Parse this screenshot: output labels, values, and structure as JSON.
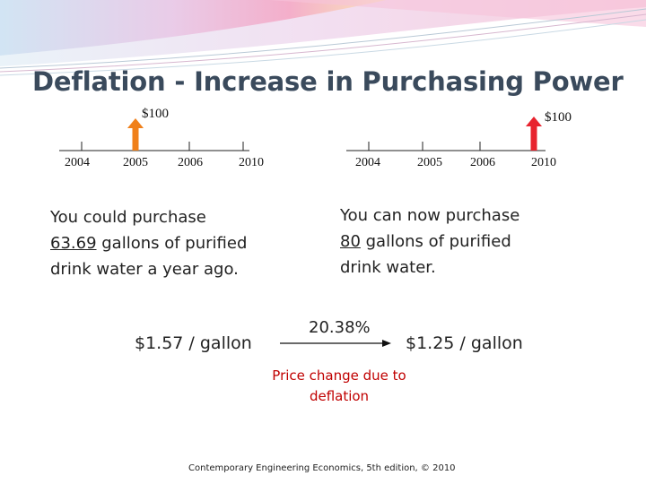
{
  "title": "Deflation - Increase in Purchasing Power",
  "colors": {
    "title": "#3a4a5c",
    "arrow_left": "#f0801a",
    "arrow_right": "#e8232e",
    "red_text": "#c00000"
  },
  "left_timeline": {
    "amount_label": "$100",
    "years": [
      "2004",
      "2005",
      "2006",
      "2010"
    ],
    "arrow_at_year": "2005"
  },
  "right_timeline": {
    "amount_label": "$100",
    "years": [
      "2004",
      "2005",
      "2006",
      "2010"
    ],
    "arrow_at_year": "2010"
  },
  "left_text": {
    "line1": "You could purchase",
    "amount": "63.69",
    "line2_rest": " gallons of purified",
    "line3": "drink water a year ago."
  },
  "right_text": {
    "line1": "You can now purchase",
    "amount": "80",
    "line2_rest": " gallons of purified",
    "line3": "drink water."
  },
  "left_price": "$1.57 / gallon",
  "right_price": "$1.25 / gallon",
  "percent_change": "20.38%",
  "price_change_note": {
    "line1": "Price change due to",
    "line2": "deflation"
  },
  "footer": "Contemporary Engineering Economics, 5th edition, © 2010"
}
